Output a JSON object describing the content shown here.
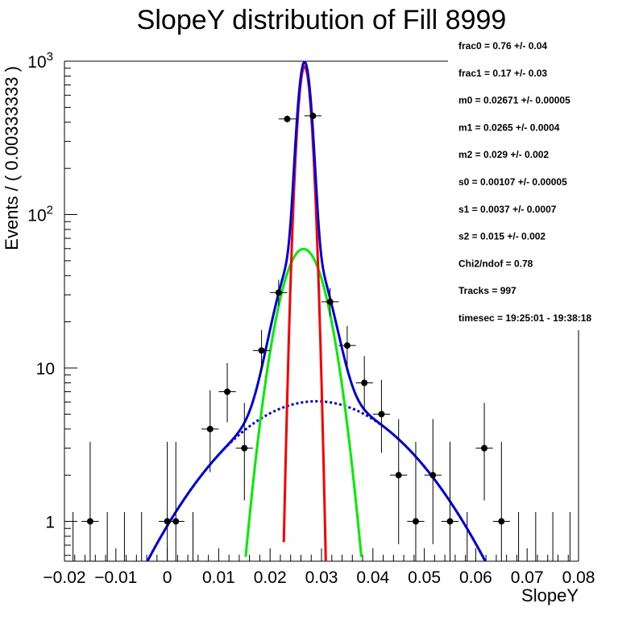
{
  "chart_data": {
    "type": "scatter",
    "title": "SlopeY distribution of Fill 8999",
    "xlabel": "SlopeY",
    "ylabel": "Events / ( 0.00333333 )",
    "xlim": [
      -0.02,
      0.08
    ],
    "ylim": [
      0.55,
      1000
    ],
    "yscale": "log",
    "x_ticks": [
      "−0.02",
      "−0.01",
      "0",
      "0.01",
      "0.02",
      "0.03",
      "0.04",
      "0.05",
      "0.06",
      "0.07",
      "0.08"
    ],
    "y_ticks": [
      {
        "value": 1,
        "label": "1"
      },
      {
        "value": 10,
        "label": "10"
      },
      {
        "value": 100,
        "label": "10",
        "exp": "2"
      },
      {
        "value": 1000,
        "label": "10",
        "exp": "3"
      }
    ],
    "data": {
      "bin_width": 0.00333333,
      "x": [
        -0.015,
        0.0,
        0.0016667,
        0.0083333,
        0.0116667,
        0.015,
        0.0183333,
        0.0216667,
        0.0233333,
        0.0283333,
        0.0316667,
        0.035,
        0.0383333,
        0.0416667,
        0.045,
        0.0483333,
        0.0516667,
        0.055,
        0.0616667,
        0.065
      ],
      "y": [
        1,
        1,
        1,
        4,
        7,
        3,
        13,
        31,
        420,
        440,
        27,
        14,
        8,
        5,
        2,
        1,
        2,
        1,
        3,
        1
      ],
      "y_err_low": [
        0.83,
        0.83,
        0.83,
        1.91,
        2.58,
        1.63,
        3.6,
        5.5,
        20.5,
        21,
        5.2,
        3.7,
        2.8,
        2.2,
        1.29,
        0.83,
        1.29,
        0.83,
        1.63,
        0.83
      ],
      "y_err_high": [
        2.3,
        2.3,
        2.3,
        3.16,
        3.77,
        2.92,
        4.69,
        6.6,
        21,
        21.5,
        6.2,
        4.8,
        3.96,
        3.38,
        2.64,
        2.3,
        2.64,
        2.3,
        2.92,
        2.3
      ]
    },
    "empty_bins_x": [
      -0.0183333,
      -0.0116667,
      -0.0083333,
      -0.005,
      0.005,
      0.0583333,
      0.0683333,
      0.0716667,
      0.075,
      0.0783333
    ],
    "empty_bin_upper": 1.15,
    "fit": {
      "total_norm": 977,
      "components": [
        {
          "frac": 0.76,
          "mean": 0.02671,
          "sigma": 0.00107,
          "color": "#ff0000",
          "style": "solid"
        },
        {
          "frac": 0.17,
          "mean": 0.0265,
          "sigma": 0.0037,
          "color": "#00ee00",
          "style": "solid"
        },
        {
          "frac": 0.07,
          "mean": 0.029,
          "sigma": 0.015,
          "color": "#0000dd",
          "style": "dotted"
        }
      ],
      "total_color": "#0000dd"
    },
    "stats": [
      "frac0 =  0.76 +/- 0.04",
      "frac1 =  0.17 +/- 0.03",
      "m0 =  0.02671 +/- 0.00005",
      "m1 =  0.0265 +/- 0.0004",
      "m2 =  0.029 +/- 0.002",
      "s0 =  0.00107 +/- 0.00005",
      "s1 =  0.0037 +/- 0.0007",
      "s2 =  0.015 +/- 0.002",
      "Chi2/ndof =  0.78",
      "Tracks = 997",
      "timesec = 19:25:01 - 19:38:18"
    ],
    "grid": false,
    "legend": "none"
  }
}
